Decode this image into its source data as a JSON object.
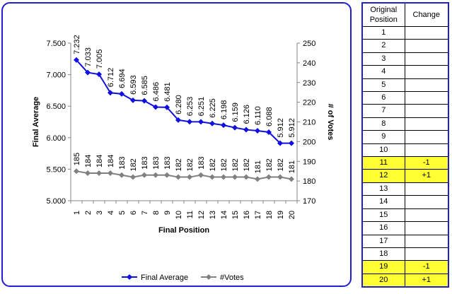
{
  "chart_data": {
    "type": "line",
    "categories": [
      "1",
      "2",
      "3",
      "4",
      "5",
      "6",
      "7",
      "8",
      "9",
      "10",
      "11",
      "12",
      "13",
      "14",
      "15",
      "16",
      "17",
      "18",
      "19",
      "20"
    ],
    "series": [
      {
        "name": "Final Average",
        "axis": "left",
        "color": "#1010e0",
        "values": [
          7.232,
          7.033,
          7.005,
          6.712,
          6.694,
          6.593,
          6.585,
          6.486,
          6.481,
          6.28,
          6.253,
          6.251,
          6.225,
          6.198,
          6.159,
          6.126,
          6.11,
          6.088,
          5.912,
          5.912
        ],
        "labels": [
          "7.232",
          "7.033",
          "7.005",
          "6.712",
          "6.694",
          "6.593",
          "6.585",
          "6.486",
          "6.481",
          "6.280",
          "6.253",
          "6.251",
          "6.225",
          "6.198",
          "6.159",
          "6.126",
          "6.110",
          "6.088",
          "5.912",
          "5.912"
        ]
      },
      {
        "name": "#Votes",
        "axis": "right",
        "color": "#808080",
        "values": [
          185,
          184,
          184,
          184,
          183,
          182,
          183,
          183,
          183,
          182,
          182,
          183,
          182,
          182,
          182,
          182,
          181,
          182,
          182,
          181
        ],
        "labels": [
          "185",
          "184",
          "184",
          "184",
          "183",
          "182",
          "183",
          "183",
          "183",
          "182",
          "182",
          "183",
          "182",
          "182",
          "182",
          "182",
          "181",
          "182",
          "182",
          "181"
        ]
      }
    ],
    "xlabel": "Final Position",
    "ylabel": "Final Average",
    "y2label": "# of Votes",
    "ylim": [
      5.0,
      7.5
    ],
    "yticks": [
      "5.000",
      "5.500",
      "6.000",
      "6.500",
      "7.000",
      "7.500"
    ],
    "y2lim": [
      170,
      250
    ],
    "y2ticks": [
      "170",
      "180",
      "190",
      "200",
      "210",
      "220",
      "230",
      "240",
      "250"
    ],
    "grid": false,
    "legend": "bottom"
  },
  "table": {
    "headers": [
      "Original Position",
      "Change"
    ],
    "highlight_color": "#ffff33",
    "rows": [
      {
        "pos": "1",
        "change": ""
      },
      {
        "pos": "2",
        "change": ""
      },
      {
        "pos": "3",
        "change": ""
      },
      {
        "pos": "4",
        "change": ""
      },
      {
        "pos": "5",
        "change": ""
      },
      {
        "pos": "6",
        "change": ""
      },
      {
        "pos": "7",
        "change": ""
      },
      {
        "pos": "8",
        "change": ""
      },
      {
        "pos": "9",
        "change": ""
      },
      {
        "pos": "10",
        "change": ""
      },
      {
        "pos": "11",
        "change": "-1",
        "highlight": true
      },
      {
        "pos": "12",
        "change": "+1",
        "highlight": true
      },
      {
        "pos": "13",
        "change": ""
      },
      {
        "pos": "14",
        "change": ""
      },
      {
        "pos": "15",
        "change": ""
      },
      {
        "pos": "16",
        "change": ""
      },
      {
        "pos": "17",
        "change": ""
      },
      {
        "pos": "18",
        "change": ""
      },
      {
        "pos": "19",
        "change": "-1",
        "highlight": true
      },
      {
        "pos": "20",
        "change": "+1",
        "highlight": true
      }
    ]
  }
}
